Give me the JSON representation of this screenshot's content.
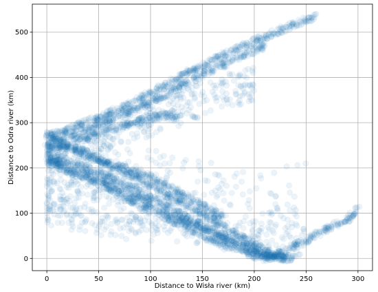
{
  "chart_data": {
    "type": "scatter",
    "title": "",
    "xlabel": "Distance to Wisła river (km)",
    "ylabel": "Distance to Odra river (km)",
    "xlim": [
      -14,
      314
    ],
    "ylim": [
      -27,
      562
    ],
    "xticks": [
      0,
      50,
      100,
      150,
      200,
      250,
      300
    ],
    "yticks": [
      0,
      100,
      200,
      300,
      400,
      500
    ],
    "grid": true,
    "marker": {
      "shape": "circle",
      "color": "#1f77b4",
      "alpha": 0.08
    },
    "bands": [
      {
        "x": [
          0,
          20,
          60,
          100,
          140,
          180,
          220,
          260
        ],
        "y": [
          270,
          285,
          320,
          365,
          415,
          460,
          500,
          535
        ]
      },
      {
        "x": [
          0,
          20,
          60,
          100,
          140,
          180,
          210
        ],
        "y": [
          255,
          270,
          305,
          345,
          395,
          440,
          470
        ]
      },
      {
        "x": [
          0,
          20,
          60,
          100,
          130
        ],
        "y": [
          240,
          255,
          285,
          310,
          320
        ]
      },
      {
        "x": [
          0,
          30,
          60,
          100,
          140,
          170
        ],
        "y": [
          250,
          240,
          210,
          180,
          130,
          90
        ]
      },
      {
        "x": [
          0,
          40,
          80,
          120,
          160,
          200,
          220
        ],
        "y": [
          275,
          225,
          185,
          135,
          85,
          30,
          5
        ]
      },
      {
        "x": [
          0,
          40,
          80,
          120,
          160,
          200,
          230
        ],
        "y": [
          230,
          200,
          160,
          110,
          60,
          20,
          0
        ]
      },
      {
        "x": [
          0,
          40,
          80,
          120,
          160,
          200,
          230
        ],
        "y": [
          220,
          185,
          145,
          95,
          55,
          10,
          0
        ]
      },
      {
        "x": [
          0,
          40,
          80,
          120,
          160,
          200,
          240
        ],
        "y": [
          215,
          175,
          130,
          85,
          40,
          5,
          0
        ]
      },
      {
        "x": [
          210,
          230,
          250,
          270,
          290,
          300
        ],
        "y": [
          0,
          15,
          40,
          65,
          85,
          110
        ]
      }
    ]
  }
}
